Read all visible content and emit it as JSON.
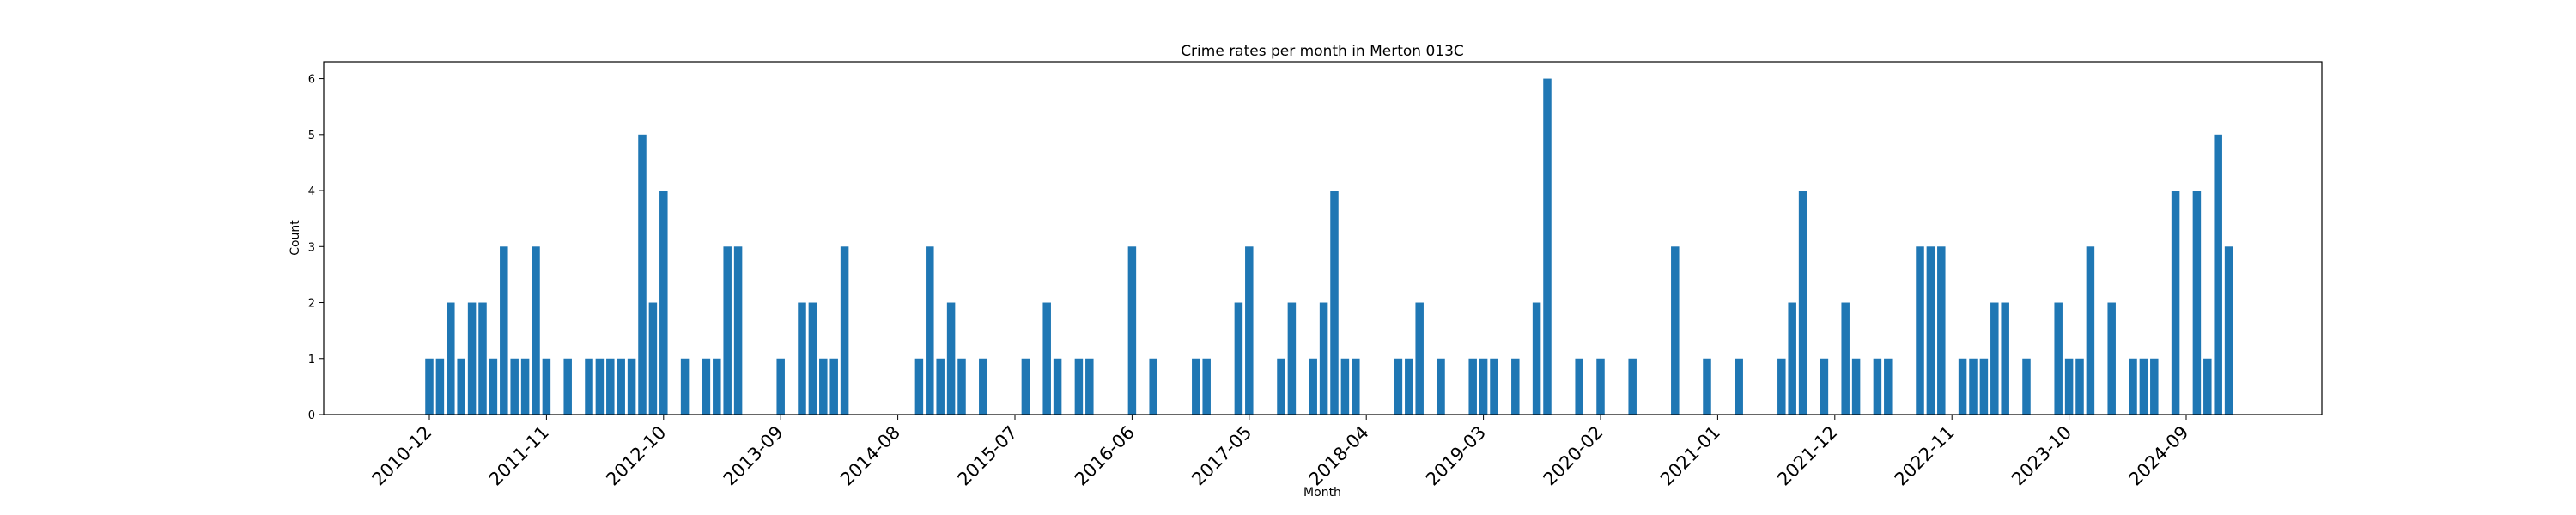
{
  "chart_data": {
    "type": "bar",
    "title": "Crime rates per month in Merton 013C",
    "xlabel": "Month",
    "ylabel": "Count",
    "ylim": [
      0,
      6.3
    ],
    "yticks": [
      0,
      1,
      2,
      3,
      4,
      5,
      6
    ],
    "xtick_labels": [
      "2010-12",
      "2011-11",
      "2012-10",
      "2013-09",
      "2014-08",
      "2015-07",
      "2016-06",
      "2017-05",
      "2018-04",
      "2019-03",
      "2020-02",
      "2021-01",
      "2021-12",
      "2022-11",
      "2023-10",
      "2024-09"
    ],
    "grid": false,
    "legend": "none",
    "bar_color": "#1f77b4",
    "points": [
      {
        "x": "2010-12",
        "y": 1
      },
      {
        "x": "2011-01",
        "y": 1
      },
      {
        "x": "2011-02",
        "y": 2
      },
      {
        "x": "2011-03",
        "y": 1
      },
      {
        "x": "2011-04",
        "y": 2
      },
      {
        "x": "2011-05",
        "y": 2
      },
      {
        "x": "2011-06",
        "y": 1
      },
      {
        "x": "2011-07",
        "y": 3
      },
      {
        "x": "2011-08",
        "y": 1
      },
      {
        "x": "2011-09",
        "y": 1
      },
      {
        "x": "2011-10",
        "y": 3
      },
      {
        "x": "2011-11",
        "y": 1
      },
      {
        "x": "2012-01",
        "y": 1
      },
      {
        "x": "2012-03",
        "y": 1
      },
      {
        "x": "2012-04",
        "y": 1
      },
      {
        "x": "2012-05",
        "y": 1
      },
      {
        "x": "2012-06",
        "y": 1
      },
      {
        "x": "2012-07",
        "y": 1
      },
      {
        "x": "2012-08",
        "y": 5
      },
      {
        "x": "2012-09",
        "y": 2
      },
      {
        "x": "2012-10",
        "y": 4
      },
      {
        "x": "2012-12",
        "y": 1
      },
      {
        "x": "2013-02",
        "y": 1
      },
      {
        "x": "2013-03",
        "y": 1
      },
      {
        "x": "2013-04",
        "y": 3
      },
      {
        "x": "2013-05",
        "y": 3
      },
      {
        "x": "2013-09",
        "y": 1
      },
      {
        "x": "2013-11",
        "y": 2
      },
      {
        "x": "2013-12",
        "y": 2
      },
      {
        "x": "2014-01",
        "y": 1
      },
      {
        "x": "2014-02",
        "y": 1
      },
      {
        "x": "2014-03",
        "y": 3
      },
      {
        "x": "2014-10",
        "y": 1
      },
      {
        "x": "2014-11",
        "y": 3
      },
      {
        "x": "2014-12",
        "y": 1
      },
      {
        "x": "2015-01",
        "y": 2
      },
      {
        "x": "2015-02",
        "y": 1
      },
      {
        "x": "2015-04",
        "y": 1
      },
      {
        "x": "2015-08",
        "y": 1
      },
      {
        "x": "2015-10",
        "y": 2
      },
      {
        "x": "2015-11",
        "y": 1
      },
      {
        "x": "2016-01",
        "y": 1
      },
      {
        "x": "2016-02",
        "y": 1
      },
      {
        "x": "2016-06",
        "y": 3
      },
      {
        "x": "2016-08",
        "y": 1
      },
      {
        "x": "2016-12",
        "y": 1
      },
      {
        "x": "2017-01",
        "y": 1
      },
      {
        "x": "2017-04",
        "y": 2
      },
      {
        "x": "2017-05",
        "y": 3
      },
      {
        "x": "2017-08",
        "y": 1
      },
      {
        "x": "2017-09",
        "y": 2
      },
      {
        "x": "2017-11",
        "y": 1
      },
      {
        "x": "2017-12",
        "y": 2
      },
      {
        "x": "2018-01",
        "y": 4
      },
      {
        "x": "2018-02",
        "y": 1
      },
      {
        "x": "2018-03",
        "y": 1
      },
      {
        "x": "2018-07",
        "y": 1
      },
      {
        "x": "2018-08",
        "y": 1
      },
      {
        "x": "2018-09",
        "y": 2
      },
      {
        "x": "2018-11",
        "y": 1
      },
      {
        "x": "2019-02",
        "y": 1
      },
      {
        "x": "2019-03",
        "y": 1
      },
      {
        "x": "2019-04",
        "y": 1
      },
      {
        "x": "2019-06",
        "y": 1
      },
      {
        "x": "2019-08",
        "y": 2
      },
      {
        "x": "2019-09",
        "y": 6
      },
      {
        "x": "2019-12",
        "y": 1
      },
      {
        "x": "2020-02",
        "y": 1
      },
      {
        "x": "2020-05",
        "y": 1
      },
      {
        "x": "2020-09",
        "y": 3
      },
      {
        "x": "2020-12",
        "y": 1
      },
      {
        "x": "2021-03",
        "y": 1
      },
      {
        "x": "2021-07",
        "y": 1
      },
      {
        "x": "2021-08",
        "y": 2
      },
      {
        "x": "2021-09",
        "y": 4
      },
      {
        "x": "2021-11",
        "y": 1
      },
      {
        "x": "2022-01",
        "y": 2
      },
      {
        "x": "2022-02",
        "y": 1
      },
      {
        "x": "2022-04",
        "y": 1
      },
      {
        "x": "2022-05",
        "y": 1
      },
      {
        "x": "2022-08",
        "y": 3
      },
      {
        "x": "2022-09",
        "y": 3
      },
      {
        "x": "2022-10",
        "y": 3
      },
      {
        "x": "2022-12",
        "y": 1
      },
      {
        "x": "2023-01",
        "y": 1
      },
      {
        "x": "2023-02",
        "y": 1
      },
      {
        "x": "2023-03",
        "y": 2
      },
      {
        "x": "2023-04",
        "y": 2
      },
      {
        "x": "2023-06",
        "y": 1
      },
      {
        "x": "2023-09",
        "y": 2
      },
      {
        "x": "2023-10",
        "y": 1
      },
      {
        "x": "2023-11",
        "y": 1
      },
      {
        "x": "2023-12",
        "y": 3
      },
      {
        "x": "2024-02",
        "y": 2
      },
      {
        "x": "2024-04",
        "y": 1
      },
      {
        "x": "2024-05",
        "y": 1
      },
      {
        "x": "2024-06",
        "y": 1
      },
      {
        "x": "2024-08",
        "y": 4
      },
      {
        "x": "2024-10",
        "y": 4
      },
      {
        "x": "2024-11",
        "y": 1
      },
      {
        "x": "2024-12",
        "y": 5
      },
      {
        "x": "2025-01",
        "y": 3
      }
    ]
  }
}
